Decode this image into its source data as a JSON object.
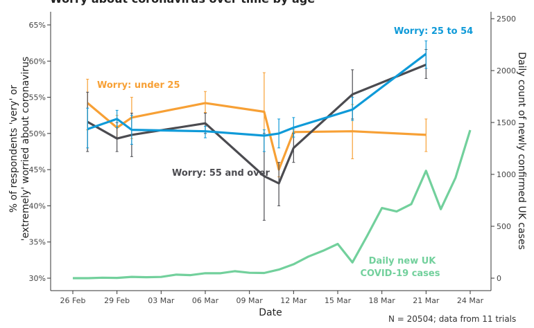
{
  "chart_data": {
    "type": "line",
    "title": "Worry about coronavirus over time by age",
    "xlabel": "Date",
    "ylabel": "% of respondents 'very' or 'extremely' worried about coronavirus",
    "y2label": "Daily count of newly confirmed UK cases",
    "footnote": "N = 20504; data from 11 trials",
    "x_ticks": [
      "26 Feb",
      "29 Feb",
      "03 Mar",
      "06 Mar",
      "09 Mar",
      "12 Mar",
      "15 Mar",
      "18 Mar",
      "21 Mar",
      "24 Mar"
    ],
    "y_ticks": [
      "30%",
      "35%",
      "40%",
      "45%",
      "50%",
      "55%",
      "60%",
      "65%"
    ],
    "y2_ticks": [
      "0",
      "500",
      "1000",
      "1500",
      "2000",
      "2500"
    ],
    "ylim": [
      30,
      65
    ],
    "y2lim": [
      0,
      2500
    ],
    "series": [
      {
        "name": "Worry: under 25",
        "color": "#f7a035",
        "axis": "left",
        "x": [
          "27 Feb",
          "29 Feb",
          "01 Mar",
          "06 Mar",
          "10 Mar",
          "11 Mar",
          "12 Mar",
          "16 Mar",
          "21 Mar"
        ],
        "y": [
          54.2,
          50.8,
          52.2,
          54.2,
          53.0,
          45.0,
          50.2,
          50.3,
          49.8
        ],
        "low": [
          50.5,
          49.4,
          49.3,
          52.9,
          47.5,
          44.0,
          50.0,
          46.5,
          47.5
        ],
        "high": [
          57.5,
          52.5,
          55.0,
          55.8,
          58.4,
          46.0,
          50.5,
          54.0,
          52.0
        ]
      },
      {
        "name": "Worry: 25 to 54",
        "color": "#0f9ad8",
        "axis": "left",
        "x": [
          "27 Feb",
          "29 Feb",
          "01 Mar",
          "06 Mar",
          "10 Mar",
          "11 Mar",
          "12 Mar",
          "16 Mar",
          "21 Mar"
        ],
        "y": [
          50.6,
          52.0,
          50.5,
          50.3,
          49.7,
          50.0,
          50.8,
          53.3,
          61.0
        ],
        "low": [
          48.0,
          50.8,
          48.5,
          49.4,
          47.5,
          48.0,
          49.5,
          51.8,
          59.0
        ],
        "high": [
          53.5,
          53.2,
          52.5,
          51.0,
          50.5,
          52.0,
          52.2,
          55.0,
          62.8
        ]
      },
      {
        "name": "Worry: 55 and over",
        "color": "#4b4b50",
        "axis": "left",
        "x": [
          "27 Feb",
          "29 Feb",
          "01 Mar",
          "06 Mar",
          "10 Mar",
          "11 Mar",
          "12 Mar",
          "16 Mar",
          "21 Mar"
        ],
        "y": [
          51.6,
          49.3,
          49.8,
          51.4,
          44.1,
          43.1,
          48.0,
          55.4,
          59.5
        ],
        "low": [
          47.5,
          47.5,
          46.8,
          50.0,
          38.0,
          40.0,
          46.0,
          52.0,
          57.6
        ],
        "high": [
          55.7,
          51.5,
          52.8,
          52.8,
          50.0,
          46.0,
          50.0,
          58.8,
          61.6
        ]
      },
      {
        "name": "Daily new UK COVID-19 cases",
        "color": "#72d09c",
        "axis": "right",
        "x": [
          "26 Feb",
          "27 Feb",
          "28 Feb",
          "29 Feb",
          "01 Mar",
          "02 Mar",
          "03 Mar",
          "04 Mar",
          "05 Mar",
          "06 Mar",
          "07 Mar",
          "08 Mar",
          "09 Mar",
          "10 Mar",
          "11 Mar",
          "12 Mar",
          "13 Mar",
          "14 Mar",
          "15 Mar",
          "16 Mar",
          "17 Mar",
          "18 Mar",
          "19 Mar",
          "20 Mar",
          "21 Mar",
          "22 Mar",
          "23 Mar",
          "24 Mar"
        ],
        "y": [
          0,
          0,
          5,
          3,
          13,
          9,
          12,
          34,
          29,
          48,
          47,
          67,
          52,
          50,
          83,
          134,
          208,
          264,
          330,
          152,
          407,
          676,
          643,
          714,
          1035,
          665,
          967,
          1427
        ]
      }
    ],
    "annotations": [
      {
        "text": "Worry: 25 to 54",
        "color": "#0f9ad8"
      },
      {
        "text": "Worry: under 25",
        "color": "#f7a035"
      },
      {
        "text": "Worry: 55 and over",
        "color": "#4b4b50"
      },
      {
        "text": "Daily new UK",
        "color": "#72d09c"
      },
      {
        "text": "COVID-19 cases",
        "color": "#72d09c"
      }
    ],
    "grid": false,
    "legend": "none"
  }
}
